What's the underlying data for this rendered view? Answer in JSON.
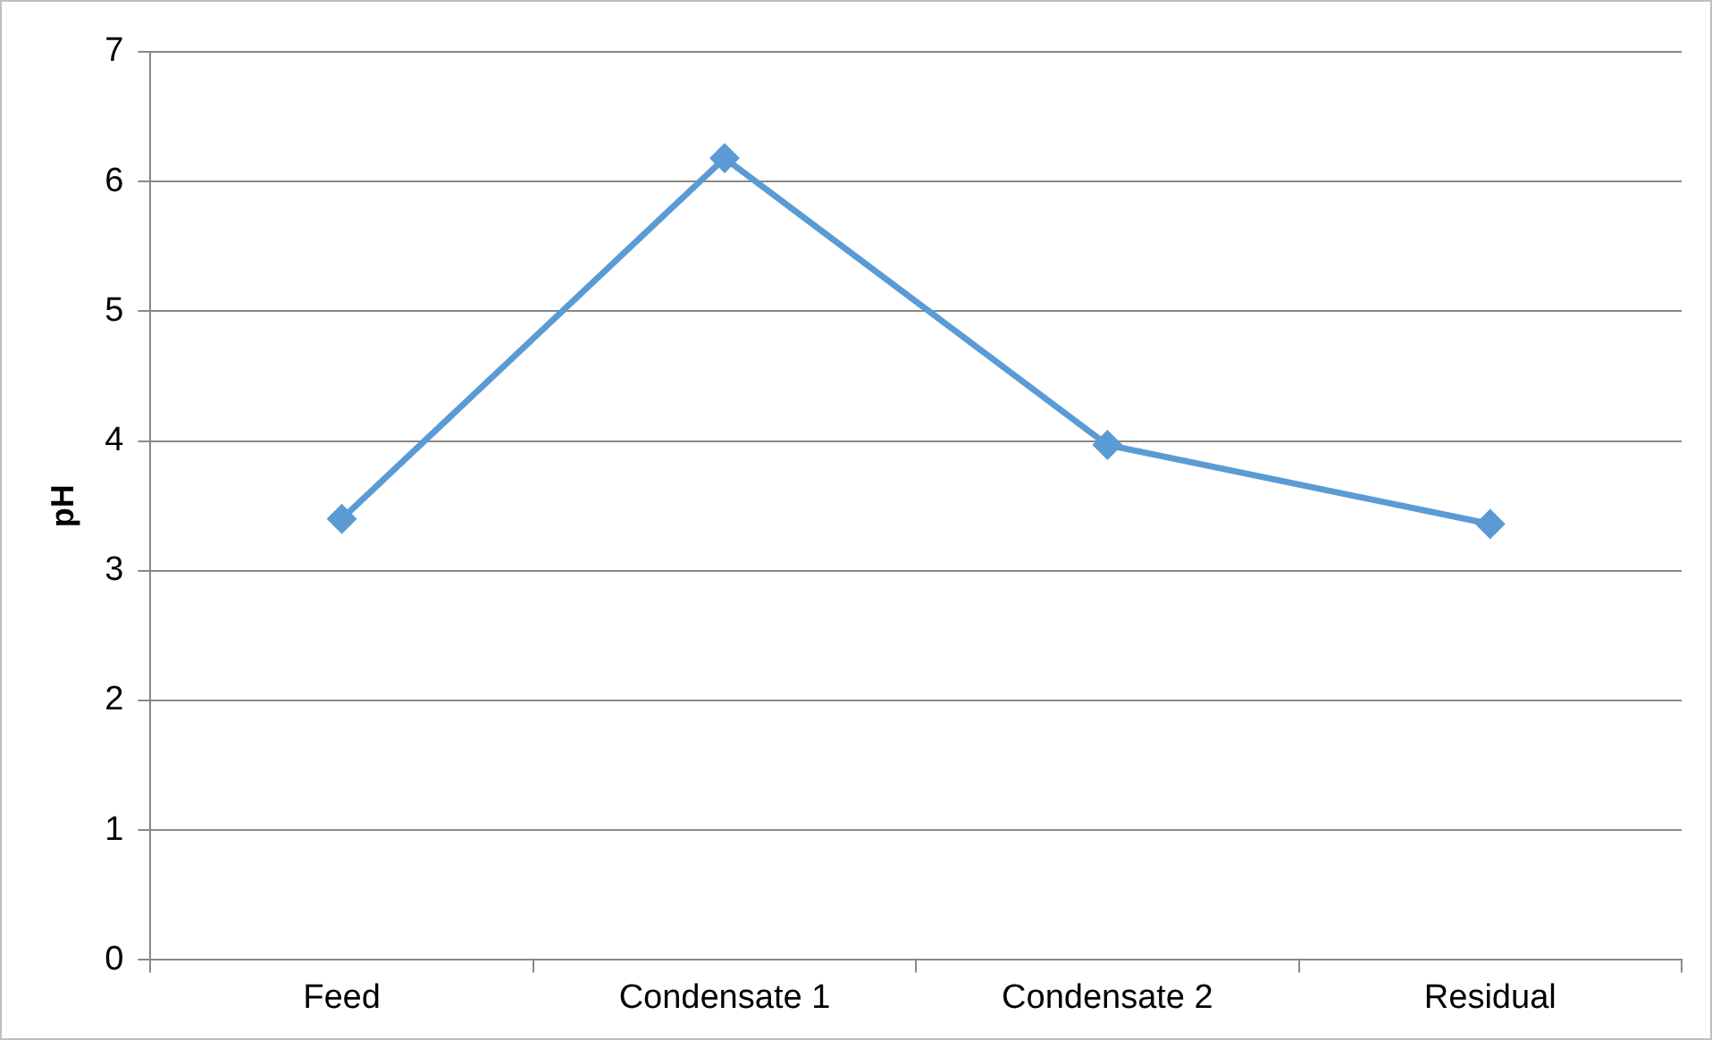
{
  "chart_data": {
    "type": "line",
    "ylabel": "pH",
    "categories": [
      "Feed",
      "Condensate 1",
      "Condensate 2",
      "Residual"
    ],
    "series": [
      {
        "color": "#5b9bd5",
        "values": [
          3.4,
          6.18,
          3.97,
          3.36
        ]
      }
    ],
    "ylim": [
      0,
      7
    ],
    "yticks": [
      0,
      1,
      2,
      3,
      4,
      5,
      6,
      7
    ],
    "grid": "y",
    "legend": false,
    "marker": "diamond",
    "line_style": "solid"
  }
}
